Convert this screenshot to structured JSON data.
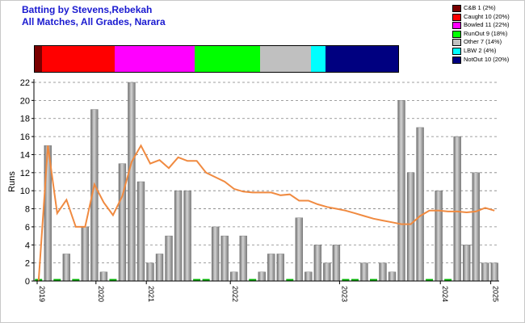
{
  "title_lines": [
    "Batting by Stevens,Rebekah",
    "All Matches, All Grades, Narara"
  ],
  "legend": [
    {
      "label": "C&B 1 (2%)",
      "color": "#7a0000",
      "share": 2
    },
    {
      "label": "Caught 10 (20%)",
      "color": "#ff0000",
      "share": 20
    },
    {
      "label": "Bowled 11 (22%)",
      "color": "#ff00ff",
      "share": 22
    },
    {
      "label": "RunOut 9 (18%)",
      "color": "#00ff00",
      "share": 18
    },
    {
      "label": "Other 7 (14%)",
      "color": "#c0c0c0",
      "share": 14
    },
    {
      "label": "LBW 2 (4%)",
      "color": "#00ffff",
      "share": 4
    },
    {
      "label": "NotOut 10 (20%)",
      "color": "#000080",
      "share": 20
    }
  ],
  "chart_data": {
    "type": "bar",
    "ylabel": "Runs",
    "ylim": [
      0,
      22
    ],
    "yticks": [
      0,
      2,
      4,
      6,
      8,
      10,
      12,
      14,
      16,
      18,
      20,
      22
    ],
    "grid": true,
    "xticks": [
      "2019",
      "2020",
      "2021",
      "2022",
      "2023",
      "2024",
      "2025"
    ],
    "series": [
      {
        "type": "bar",
        "color": "#a0a0a0",
        "values": [
          0.2,
          15,
          0.2,
          3,
          0.2,
          6,
          19,
          1,
          0.2,
          13,
          22,
          11,
          2,
          3,
          5,
          10,
          10,
          0.2,
          0.2,
          6,
          5,
          1,
          5,
          0.2,
          1,
          3,
          3,
          0.2,
          7,
          1,
          4,
          2,
          4,
          0.2,
          0.2,
          2,
          0.2,
          2,
          1,
          20,
          12,
          17,
          0.2,
          10,
          0.2,
          16,
          4,
          12,
          2,
          2
        ]
      },
      {
        "type": "line",
        "color": "#f08a40",
        "values": [
          0,
          15,
          7.5,
          9,
          6,
          6,
          10.7,
          8.7,
          7.3,
          9.4,
          13.2,
          15,
          13,
          13.4,
          12.5,
          13.7,
          13.3,
          13.3,
          12,
          11.5,
          11,
          10.2,
          9.9,
          9.8,
          9.8,
          9.8,
          9.5,
          9.6,
          8.9,
          8.9,
          8.5,
          8.2,
          8.0,
          7.8,
          7.5,
          7.2,
          6.9,
          6.7,
          6.5,
          6.3,
          6.3,
          7.2,
          7.8,
          7.8,
          7.7,
          7.7,
          7.6,
          7.7,
          8.1,
          7.8
        ]
      }
    ]
  }
}
